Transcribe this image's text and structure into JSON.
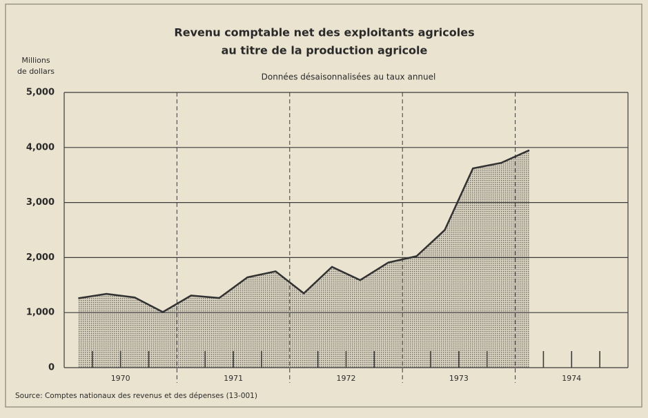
{
  "chart_data": {
    "type": "area",
    "title_lines": [
      "Revenu comptable net des exploitants agricoles",
      "au titre de la production agricole"
    ],
    "subtitle": "Données désaisonnalisées au taux annuel",
    "y_label_lines": [
      "Millions",
      "de dollars"
    ],
    "source": "Source:  Comptes nationaux des revenus et des dépenses (13-001)",
    "year_groups": [
      "1970",
      "1971",
      "1972",
      "1973",
      "1974"
    ],
    "categories": [
      null,
      null,
      null,
      null,
      null,
      null,
      null,
      null,
      null,
      null,
      null,
      null,
      null,
      null,
      null,
      null,
      null,
      null,
      null,
      null
    ],
    "values": [
      1260,
      1340,
      1275,
      1010,
      1310,
      1265,
      1640,
      1750,
      1350,
      1830,
      1590,
      1910,
      2025,
      2500,
      3620,
      3720,
      3950,
      null,
      null,
      null
    ],
    "color": "#333333",
    "ylim": [
      0,
      5000
    ],
    "yticks": [
      0,
      {
        "value": 1000,
        "label": "1,000"
      },
      {
        "value": 2000,
        "label": "2,000"
      },
      {
        "value": 3000,
        "label": "3,000"
      },
      {
        "value": 4000,
        "label": "4,000"
      },
      {
        "value": 5000,
        "label": "5,000"
      }
    ],
    "grid": true
  }
}
